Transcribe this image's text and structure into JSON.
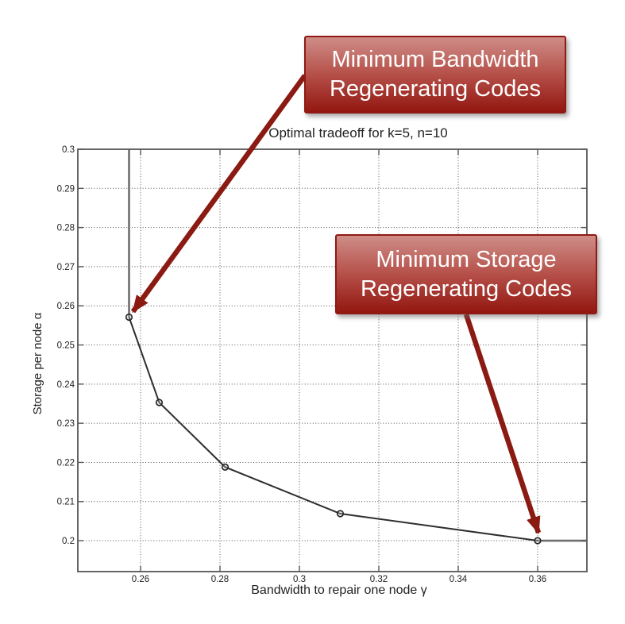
{
  "page": {
    "background": "#ffffff"
  },
  "colors": {
    "callout_border": "#8e1b14",
    "callout_gradient_top": "#cf8d88",
    "callout_gradient_mid": "#b6524b",
    "callout_gradient_bottom": "#931711",
    "callout_text": "#ffffff",
    "arrow": "#8b1a12",
    "curve": "#2f2f2f",
    "extension_line": "#6e6e6e",
    "grid": "#333333",
    "axis_frame": "#555555",
    "chart_text": "#222222"
  },
  "callouts": {
    "mbr": {
      "line1": "Minimum Bandwidth",
      "line2": "Regenerating Codes"
    },
    "msr": {
      "line1": "Minimum Storage",
      "line2": "Regenerating Codes"
    }
  },
  "chart_data": {
    "type": "line",
    "title": "Optimal tradeoff for k=5, n=10",
    "xlabel": "Bandwidth to repair one node γ",
    "ylabel": "Storage per node α",
    "xlim": [
      0.2442,
      0.3724
    ],
    "ylim": [
      0.1921,
      0.3
    ],
    "xticks": [
      0.26,
      0.28,
      0.3,
      0.32,
      0.34,
      0.36
    ],
    "xtick_labels": [
      "0.26",
      "0.28",
      "0.3",
      "0.32",
      "0.34",
      "0.36"
    ],
    "yticks": [
      0.2,
      0.21,
      0.22,
      0.23,
      0.24,
      0.25,
      0.26,
      0.27,
      0.28,
      0.29,
      0.3
    ],
    "ytick_labels": [
      "0.2",
      "0.21",
      "0.22",
      "0.23",
      "0.24",
      "0.25",
      "0.26",
      "0.27",
      "0.28",
      "0.29",
      "0.3"
    ],
    "grid": true,
    "legend": "none",
    "series": [
      {
        "name": "optimal storage-bandwidth tradeoff",
        "marker": "o",
        "points": [
          [
            0.2571,
            0.2571
          ],
          [
            0.2647,
            0.2353
          ],
          [
            0.2813,
            0.2188
          ],
          [
            0.3103,
            0.2069
          ],
          [
            0.36,
            0.2
          ]
        ]
      }
    ],
    "extension_segments": [
      {
        "name": "mbr-vertical-line",
        "from": [
          0.2571,
          0.2571
        ],
        "to": [
          0.2571,
          0.3
        ]
      },
      {
        "name": "msr-horizontal-line",
        "from": [
          0.36,
          0.2
        ],
        "to": [
          0.3724,
          0.2
        ]
      }
    ],
    "annotations": [
      {
        "label": "Minimum Bandwidth Regenerating Codes",
        "target": [
          0.2571,
          0.2571
        ]
      },
      {
        "label": "Minimum Storage Regenerating Codes",
        "target": [
          0.36,
          0.2
        ]
      }
    ]
  }
}
